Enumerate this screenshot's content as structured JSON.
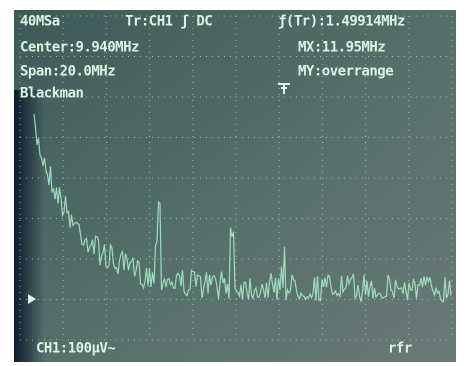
{
  "screen": {
    "top_left": [
      "40MSa",
      "Center:9.940MHz",
      "Span:20.0MHz",
      "Blackman"
    ],
    "trigger": "Tr:CH1 ʃ DC",
    "top_right": [
      "ƒ(Tr):1.49914MHz",
      "MX:11.95MHz",
      "MY:overrange"
    ],
    "channel": "CH1:100µV~",
    "status": "rfr"
  }
}
